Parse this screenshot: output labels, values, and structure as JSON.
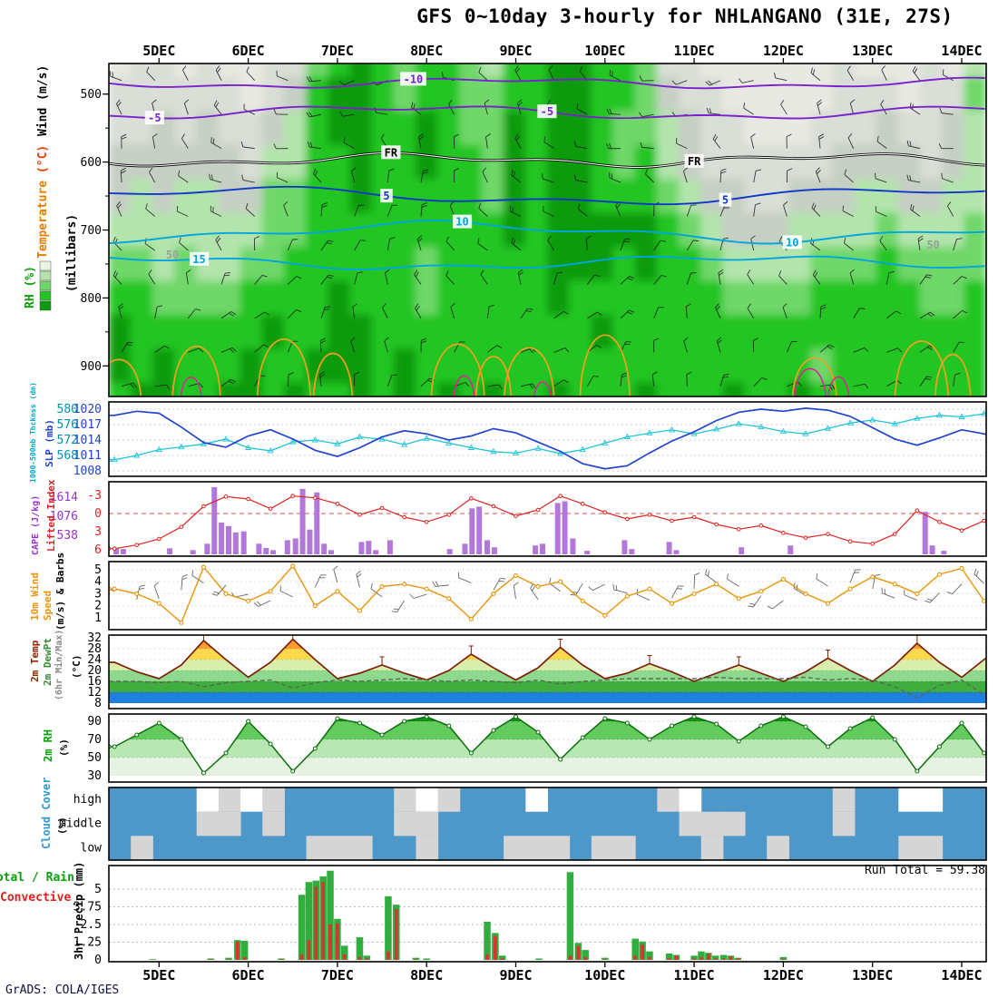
{
  "title": "GFS 0~10day 3-hourly for NHLANGANO (31E, 27S)",
  "footer": "GrADS: COLA/IGES",
  "run_total_text": "Run Total = 59.38",
  "side_labels": {
    "wind": "Wind (m/s)",
    "temperature": "Temperature",
    "temperature_unit": "(°C)",
    "rh": "RH (%)",
    "millibars": "(millibars)",
    "thickness": "1000-500mb Thcknss (dm)",
    "slp": "SLP (mb)",
    "lifted_index": "Lifted Index",
    "cape": "CAPE (J/kg)",
    "wind10m_1": "10m Wind",
    "wind10m_2": "Speed",
    "wind10m_3": "(m/s) & Barbs",
    "temp2m": "2m Temp",
    "dewpt2m": "2m DewPt",
    "minmax": "(6hr Min/Max)",
    "temp_unit": "(°C)",
    "rh2m": "2m RH",
    "rh2m_unit": "(%)",
    "cloud": "Cloud Cover",
    "cloud_unit": "(%)",
    "precip_axis": "3hr Precip (mm)",
    "precip_total": "Total / Rain",
    "precip_conv": "Convective"
  },
  "chart_data": {
    "type": "meteogram",
    "x": {
      "tick_labels": [
        "5DEC",
        "6DEC",
        "7DEC",
        "8DEC",
        "9DEC",
        "10DEC",
        "11DEC",
        "12DEC",
        "13DEC",
        "14DEC"
      ],
      "domain_days": [
        -0.56,
        9.28
      ],
      "series_d0": -0.5,
      "series_dt": 0.25
    },
    "upper_air": {
      "type": "heatmap",
      "ylabel": "(millibars)",
      "pressure_ticks": [
        500,
        600,
        700,
        800,
        900
      ],
      "rh_levels": [
        450,
        500,
        550,
        600,
        650,
        700,
        750,
        800,
        850,
        900,
        950
      ],
      "rh_rows": [
        [
          "3443433447",
          "8987887688",
          "9988744333",
          "3334333436"
        ],
        [
          "4444443458",
          "9987887788",
          "9988754433",
          "3334443447"
        ],
        [
          "4454544568",
          "9988987798",
          "9987765443",
          "3344454456"
        ],
        [
          "5555554668",
          "8988988798",
          "9987865444",
          "4445555456"
        ],
        [
          "5656655778",
          "8988888798",
          "9988876554",
          "4555665566"
        ],
        [
          "6666666778",
          "8888888898",
          "9999987655",
          "5666676667"
        ],
        [
          "7767667788",
          "8888788888",
          "9998988766",
          "6677787777"
        ],
        [
          "8877778888",
          "9888788888",
          "9888888877",
          "7788888778"
        ],
        [
          "9888888988",
          "9988888888",
          "8898888888",
          "8888888888"
        ],
        [
          "9898889889",
          "9989888888",
          "8888888888",
          "8878888888"
        ],
        [
          "8998899898",
          "8989898988",
          "9888988898",
          "8988888888"
        ]
      ],
      "contours": [
        {
          "label": "-10",
          "color": "#7a22cc",
          "base": 484,
          "a1": 6,
          "f1": 1.1,
          "p1": 0.5,
          "a2": 3,
          "f2": 3.1,
          "p2": 2.0,
          "label_at": [
            2.85
          ]
        },
        {
          "label": "-5",
          "color": "#7a22cc",
          "base": 527,
          "a1": 8,
          "f1": 0.9,
          "p1": 2.3,
          "a2": 4,
          "f2": 2.7,
          "p2": 0.7,
          "label_at": [
            -0.05,
            4.35
          ]
        },
        {
          "label": "FR",
          "color": "#000000",
          "double": true,
          "base": 597,
          "a1": 7,
          "f1": 1.3,
          "p1": 1.1,
          "a2": 4,
          "f2": 3.3,
          "p2": 2.6,
          "label_at": [
            2.6,
            6.0
          ]
        },
        {
          "label": "5",
          "color": "#1038c8",
          "base": 650,
          "a1": 10,
          "f1": 0.8,
          "p1": 4.0,
          "a2": 5,
          "f2": 2.2,
          "p2": 1.2,
          "label_at": [
            2.55,
            6.35
          ]
        },
        {
          "label": "10",
          "color": "#00a6e0",
          "base": 703,
          "a1": 12,
          "f1": 0.85,
          "p1": 2.0,
          "a2": 5,
          "f2": 2.5,
          "p2": 3.4,
          "label_at": [
            3.4,
            7.1
          ]
        },
        {
          "label": "15",
          "color": "#00a6e0",
          "base": 748,
          "a1": 8,
          "f1": 0.9,
          "p1": 5.2,
          "a2": 4,
          "f2": 2.9,
          "p2": 1.8,
          "label_at": [
            0.45
          ]
        }
      ],
      "rh_contour_labels": [
        {
          "label": "50",
          "d": 0.15,
          "p": 737
        },
        {
          "label": "50",
          "d": 8.68,
          "p": 722
        }
      ],
      "arches_orange": [
        [
          -0.45,
          0.25,
          868
        ],
        [
          0.42,
          0.27,
          842
        ],
        [
          1.4,
          0.3,
          828
        ],
        [
          1.95,
          0.22,
          856
        ],
        [
          3.35,
          0.3,
          838
        ],
        [
          3.75,
          0.2,
          862
        ],
        [
          4.15,
          0.28,
          845
        ],
        [
          5.0,
          0.28,
          820
        ],
        [
          7.35,
          0.25,
          865
        ],
        [
          8.55,
          0.3,
          832
        ],
        [
          8.9,
          0.2,
          858
        ]
      ],
      "arches_magenta": [
        [
          0.36,
          0.12,
          903
        ],
        [
          3.42,
          0.12,
          900
        ],
        [
          4.3,
          0.1,
          912
        ],
        [
          7.3,
          0.18,
          886
        ],
        [
          7.62,
          0.12,
          902
        ]
      ]
    },
    "slp_thickness": {
      "type": "line",
      "slp_ticks": [
        1020,
        1017,
        1014,
        1011,
        1008
      ],
      "thickness_ticks": [
        580,
        576,
        572,
        568
      ],
      "slp_series": [
        1018.8,
        1019.6,
        1019.2,
        1016.5,
        1013.5,
        1012.6,
        1014.8,
        1016.0,
        1014.2,
        1012.0,
        1010.8,
        1012.5,
        1014.6,
        1015.8,
        1015.2,
        1014.0,
        1014.8,
        1016.2,
        1015.4,
        1013.6,
        1011.8,
        1009.4,
        1008.4,
        1009.0,
        1011.5,
        1013.8,
        1015.6,
        1017.8,
        1019.4,
        1020.0,
        1019.6,
        1020.2,
        1019.8,
        1018.6,
        1016.4,
        1014.2,
        1013.0,
        1014.4,
        1016.0,
        1015.2,
        1013.8
      ],
      "thickness_series": [
        566.9,
        568.0,
        569.5,
        570.2,
        571.0,
        572.2,
        570.0,
        569.2,
        571.5,
        572.0,
        571.0,
        572.8,
        572.2,
        570.8,
        572.4,
        571.2,
        570.0,
        569.0,
        568.6,
        569.8,
        568.5,
        569.5,
        571.2,
        572.8,
        573.8,
        574.6,
        573.6,
        574.8,
        576.2,
        575.4,
        574.2,
        573.6,
        575.0,
        576.4,
        577.2,
        576.2,
        577.6,
        578.4,
        578.0,
        578.8,
        579.2
      ]
    },
    "cape_li": {
      "type": "bar+line",
      "li_ticks": [
        -3,
        0,
        3,
        6
      ],
      "cape_ticks": [
        1614,
        1076,
        538
      ],
      "li_series": [
        5.8,
        5.2,
        4.2,
        2.2,
        -1.2,
        -2.8,
        -2.4,
        -0.8,
        -2.9,
        -2.6,
        -1.6,
        0.2,
        -0.9,
        0.6,
        1.4,
        0.2,
        -2.5,
        -1.2,
        0.4,
        -0.6,
        -2.9,
        -1.6,
        -0.2,
        0.9,
        0.2,
        1.2,
        0.6,
        1.8,
        2.6,
        2.0,
        3.2,
        4.0,
        3.4,
        4.6,
        5.0,
        3.4,
        -0.5,
        1.4,
        2.8,
        1.2,
        0.2
      ],
      "cape_bars": [
        [
          -0.48,
          180
        ],
        [
          -0.4,
          150
        ],
        [
          0.12,
          170
        ],
        [
          0.38,
          120
        ],
        [
          0.54,
          300
        ],
        [
          0.62,
          1900
        ],
        [
          0.7,
          900
        ],
        [
          0.78,
          800
        ],
        [
          0.86,
          620
        ],
        [
          0.95,
          650
        ],
        [
          1.12,
          300
        ],
        [
          1.2,
          180
        ],
        [
          1.28,
          120
        ],
        [
          1.44,
          400
        ],
        [
          1.53,
          450
        ],
        [
          1.61,
          1850
        ],
        [
          1.69,
          700
        ],
        [
          1.77,
          1750
        ],
        [
          1.85,
          300
        ],
        [
          1.93,
          120
        ],
        [
          2.27,
          350
        ],
        [
          2.35,
          380
        ],
        [
          2.43,
          120
        ],
        [
          2.59,
          400
        ],
        [
          3.26,
          150
        ],
        [
          3.43,
          300
        ],
        [
          3.51,
          1300
        ],
        [
          3.59,
          1350
        ],
        [
          3.68,
          400
        ],
        [
          3.76,
          200
        ],
        [
          4.22,
          250
        ],
        [
          4.3,
          300
        ],
        [
          4.47,
          1450
        ],
        [
          4.55,
          1500
        ],
        [
          4.64,
          450
        ],
        [
          4.8,
          100
        ],
        [
          5.22,
          400
        ],
        [
          5.3,
          150
        ],
        [
          5.72,
          350
        ],
        [
          5.8,
          120
        ],
        [
          6.53,
          200
        ],
        [
          7.08,
          250
        ],
        [
          8.59,
          1200
        ],
        [
          8.67,
          250
        ],
        [
          8.8,
          100
        ]
      ]
    },
    "wind10m": {
      "type": "line",
      "speed_ticks": [
        5,
        4,
        3,
        2,
        1
      ],
      "speed_series": [
        3.4,
        3.0,
        2.2,
        0.6,
        5.2,
        3.0,
        2.4,
        3.2,
        5.3,
        2.0,
        3.2,
        1.6,
        3.6,
        3.8,
        3.4,
        2.6,
        0.9,
        3.0,
        4.5,
        3.6,
        4.0,
        2.4,
        1.2,
        2.8,
        3.4,
        2.2,
        3.0,
        3.8,
        2.6,
        3.2,
        4.2,
        3.0,
        2.2,
        3.4,
        4.4,
        3.8,
        3.0,
        4.6,
        5.1,
        2.4,
        1.4
      ]
    },
    "temp2m": {
      "type": "line",
      "ticks": [
        32,
        28,
        24,
        20,
        16,
        12,
        8
      ],
      "temp_series": [
        23,
        19.5,
        17,
        22,
        31,
        24,
        17.5,
        23,
        31.5,
        24,
        17,
        19,
        22,
        19,
        16.5,
        20,
        26,
        21,
        16.5,
        21,
        28.5,
        22,
        17,
        19,
        22.5,
        19.5,
        16,
        19,
        22,
        19,
        16,
        19.5,
        24.5,
        20,
        16,
        22,
        30,
        23,
        17.5,
        24,
        30.5
      ],
      "dewpt_series": [
        16,
        16,
        15.5,
        16,
        14,
        15.5,
        16,
        16.5,
        13.5,
        15.5,
        16.5,
        16,
        16.5,
        17,
        16.5,
        16,
        16.5,
        16,
        15.5,
        16.5,
        15,
        16,
        16.5,
        17,
        17,
        17,
        17,
        17.5,
        17,
        17,
        17,
        17.5,
        16.5,
        17,
        16.5,
        14,
        10,
        14.5,
        16.5,
        11,
        13.5
      ]
    },
    "rh2m": {
      "type": "area",
      "ticks": [
        90,
        70,
        50,
        30
      ],
      "series": [
        62,
        75,
        88,
        70,
        33,
        55,
        90,
        65,
        35,
        60,
        93,
        88,
        75,
        90,
        95,
        85,
        55,
        80,
        95,
        78,
        48,
        72,
        93,
        88,
        70,
        85,
        95,
        87,
        68,
        85,
        95,
        84,
        62,
        82,
        94,
        70,
        35,
        62,
        88,
        55,
        45
      ]
    },
    "cloud": {
      "type": "heatmap",
      "rows": [
        "high",
        "middle",
        "low"
      ],
      "cells": {
        "high": [
          "bbbbwgwgbb",
          "bbbgwgbbbw",
          "bbbbbgwbbb",
          "bbbgbbwwbb"
        ],
        "middle": [
          "bbbbggbgbb",
          "bbbggbbbbb",
          "bbbbbbgggb",
          "bbbgbbbbbb"
        ],
        "low": [
          "bgbbbbbbbg",
          "ggbbgbbbgg",
          "gbggbbbgbb",
          "gbbbbbggbb"
        ]
      }
    },
    "precip": {
      "type": "bar",
      "ticks": [
        5,
        3.75,
        2.5,
        1.25,
        0
      ],
      "run_total": 59.38,
      "bars": [
        [
          -0.07,
          0.05,
          0
        ],
        [
          0.58,
          0.1,
          0.05
        ],
        [
          0.78,
          0.15,
          0.05
        ],
        [
          0.88,
          1.4,
          1.3
        ],
        [
          0.96,
          1.35,
          0.2
        ],
        [
          1.37,
          0.1,
          0.05
        ],
        [
          1.6,
          4.6,
          0.4
        ],
        [
          1.68,
          5.5,
          1.4
        ],
        [
          1.76,
          5.6,
          5.2
        ],
        [
          1.84,
          5.9,
          5.5
        ],
        [
          1.92,
          6.3,
          2.5
        ],
        [
          2.0,
          2.9,
          2.6
        ],
        [
          2.08,
          1.0,
          0.4
        ],
        [
          2.25,
          1.6,
          0.2
        ],
        [
          2.33,
          0.3,
          0.1
        ],
        [
          2.57,
          4.5,
          0.6
        ],
        [
          2.66,
          3.9,
          3.6
        ],
        [
          2.88,
          0.15,
          0.05
        ],
        [
          3.0,
          0.1,
          0
        ],
        [
          3.68,
          2.7,
          0.4
        ],
        [
          3.77,
          1.9,
          1.7
        ],
        [
          3.85,
          0.3,
          0.1
        ],
        [
          4.26,
          0.1,
          0
        ],
        [
          4.61,
          6.2,
          0.3
        ],
        [
          4.7,
          1.2,
          1.0
        ],
        [
          4.78,
          0.7,
          0.2
        ],
        [
          5.0,
          0.15,
          0.05
        ],
        [
          5.34,
          1.5,
          0.3
        ],
        [
          5.42,
          1.3,
          1.1
        ],
        [
          5.5,
          0.6,
          0.2
        ],
        [
          5.72,
          0.45,
          0.1
        ],
        [
          5.8,
          0.35,
          0.3
        ],
        [
          6.0,
          0.3,
          0.1
        ],
        [
          6.08,
          0.6,
          0.2
        ],
        [
          6.16,
          0.5,
          0.45
        ],
        [
          6.24,
          0.3,
          0.1
        ],
        [
          6.33,
          0.35,
          0.1
        ],
        [
          6.41,
          0.3,
          0.25
        ],
        [
          6.49,
          0.15,
          0.1
        ],
        [
          7.0,
          0.2,
          0.05
        ]
      ]
    }
  }
}
